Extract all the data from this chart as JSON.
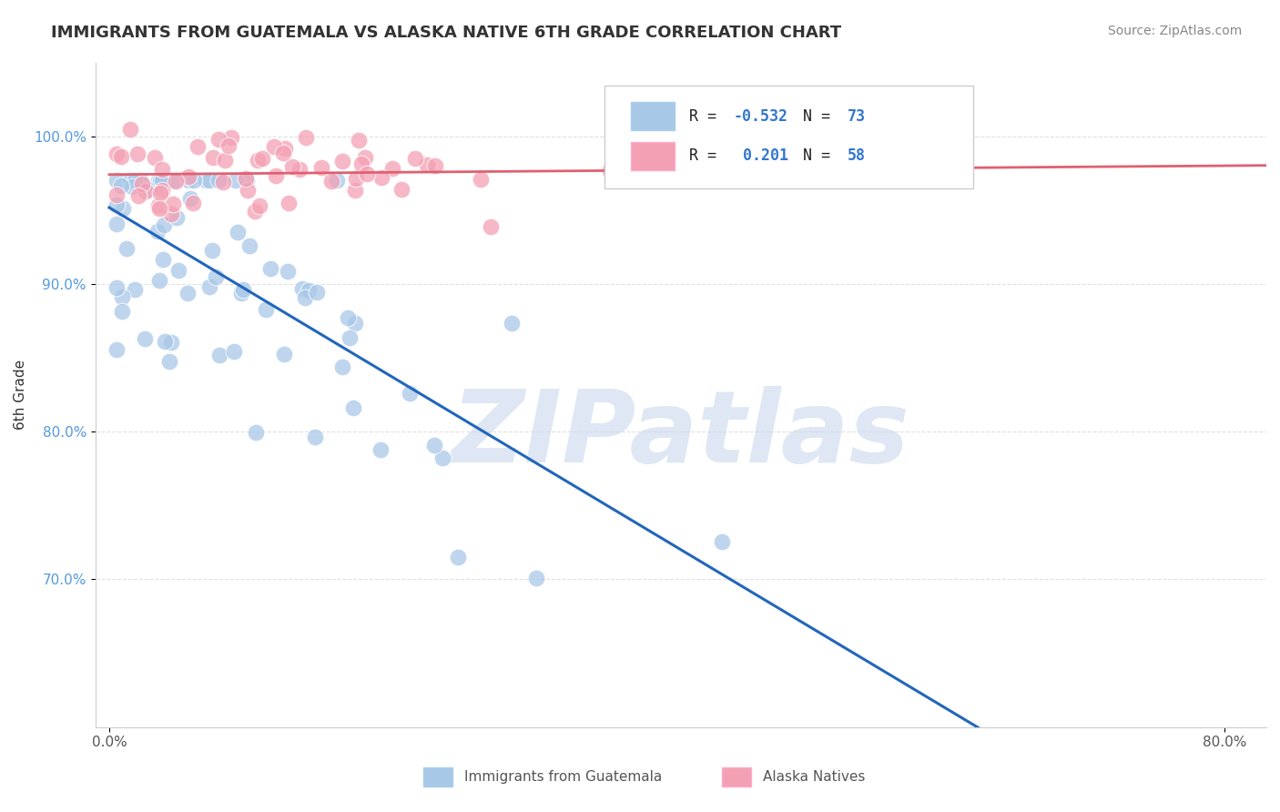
{
  "title": "IMMIGRANTS FROM GUATEMALA VS ALASKA NATIVE 6TH GRADE CORRELATION CHART",
  "source_text": "Source: ZipAtlas.com",
  "xlabel_blue": "Immigrants from Guatemala",
  "xlabel_pink": "Alaska Natives",
  "ylabel": "6th Grade",
  "R_blue": -0.532,
  "N_blue": 73,
  "R_pink": 0.201,
  "N_pink": 58,
  "blue_color": "#A8C8E8",
  "pink_color": "#F4A0B4",
  "trend_blue_color": "#2266BB",
  "trend_blue_dash_color": "#AABBCC",
  "trend_pink_color": "#E06070",
  "watermark_color": "#C8D8EC",
  "watermark_text": "ZIPatlas",
  "background_color": "#FFFFFF",
  "grid_color": "#DDDDDD",
  "title_color": "#333333",
  "ytick_color": "#5599DD",
  "xtick_color": "#555555",
  "legend_box_color": "#FFFFFF",
  "legend_border_color": "#CCCCCC"
}
